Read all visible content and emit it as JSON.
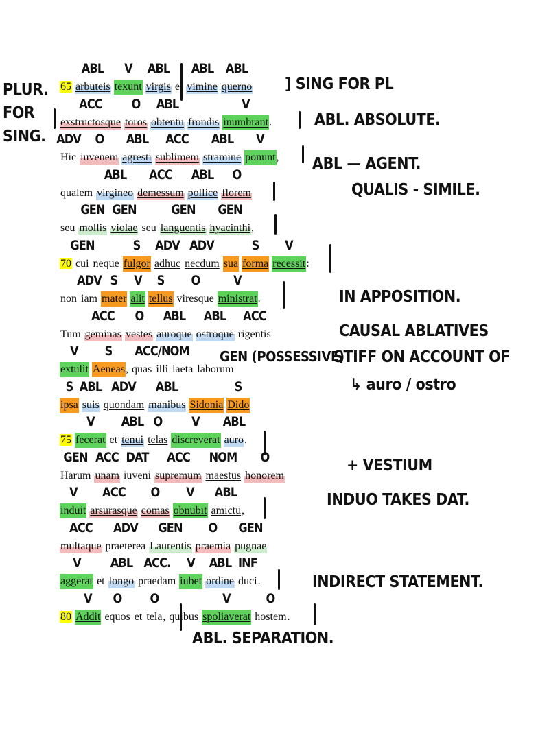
{
  "left_notes": [
    "PLUR.",
    "FOR",
    "SING."
  ],
  "right_notes": {
    "sing_for_pl": "] SING FOR PL",
    "abl_absolute": "ABL. ABSOLUTE.",
    "abl_agent": "ABL — AGENT.",
    "qualis_simile": "QUALIS - SIMILE.",
    "in_apposition": "IN APPOSITION.",
    "causal_ablatives": "CAUSAL  ABLATIVES",
    "stiff_on_account": "STIFF ON ACCOUNT OF",
    "auro_ostro": "↳ auro / ostro",
    "plus_vestium": "+ VESTIUM",
    "induo_dat": "INDUO TAKES DAT.",
    "indirect_statement": "INDIRECT STATEMENT.",
    "abl_separation": "ABL. SEPARATION.",
    "gen_possessive": "GEN (POSSESSIVE)"
  },
  "colors": {
    "verb": "#5ed35c",
    "subject": "#f79a1f",
    "ablative": "#bfd9f3",
    "accusative": "#f3bcbc",
    "genitive": "#cdeccd",
    "line_number": "#ffff00"
  },
  "lines": [
    {
      "num": "65",
      "words": [
        {
          "t": "arbuteis",
          "hl": "blue",
          "u": true,
          "tag": "ABL"
        },
        {
          "t": "texunt",
          "hl": "green",
          "tag": "V"
        },
        {
          "t": "virgis",
          "hl": "blue",
          "u": true,
          "tag": "ABL"
        },
        {
          "t": "et"
        },
        {
          "t": "vimine",
          "hl": "blue",
          "u": true,
          "tag": "ABL"
        },
        {
          "t": "querno",
          "hl": "blue",
          "u": true,
          "tag": "ABL"
        }
      ]
    },
    {
      "words": [
        {
          "t": "exstructosque",
          "hl": "pink",
          "u": true,
          "tag": "ACC"
        },
        {
          "t": "toros",
          "hl": "pink",
          "u": true,
          "tag": "O"
        },
        {
          "t": "obtentu",
          "hl": "blue",
          "u": true,
          "tag": "ABL"
        },
        {
          "t": "frondis",
          "hl": "blue",
          "u": true
        },
        {
          "t": "inumbrant",
          "hl": "green",
          "u": true,
          "tag": "V",
          "punct": "."
        }
      ]
    },
    {
      "words": [
        {
          "t": "Hic",
          "tag": "ADV"
        },
        {
          "t": "iuvenem",
          "hl": "pink",
          "tag": "O"
        },
        {
          "t": "agresti",
          "hl": "blue",
          "u": true,
          "tag": "ABL"
        },
        {
          "t": "sublimem",
          "hl": "pink",
          "u": true,
          "tag": "ACC"
        },
        {
          "t": "stramine",
          "hl": "blue",
          "u": true,
          "tag": "ABL"
        },
        {
          "t": "ponunt",
          "hl": "green",
          "tag": "V",
          "punct": ","
        }
      ]
    },
    {
      "words": [
        {
          "t": "qualem"
        },
        {
          "t": "virgineo",
          "hl": "blue",
          "tag": "ABL"
        },
        {
          "t": "demessum",
          "hl": "pink",
          "u": true,
          "tag": "ACC"
        },
        {
          "t": "pollice",
          "hl": "blue",
          "u": true,
          "tag": "ABL"
        },
        {
          "t": "florem",
          "hl": "pink",
          "u": true,
          "tag": "O"
        }
      ]
    },
    {
      "words": [
        {
          "t": "seu"
        },
        {
          "t": "mollis",
          "hl": "lightgreen",
          "tag": "GEN"
        },
        {
          "t": "violae",
          "hl": "lightgreen",
          "u": true,
          "tag": "GEN"
        },
        {
          "t": "seu"
        },
        {
          "t": "languentis",
          "hl": "lightgreen",
          "u": true,
          "tag": "GEN"
        },
        {
          "t": "hyacinthi",
          "hl": "lightgreen",
          "u": true,
          "tag": "GEN",
          "punct": ","
        }
      ]
    },
    {
      "num": "70",
      "words": [
        {
          "t": "cui",
          "tag": "GEN"
        },
        {
          "t": "neque"
        },
        {
          "t": "fulgor",
          "hl": "orange",
          "u": true,
          "tag": "S"
        },
        {
          "t": "adhuc",
          "u": true,
          "tag": "ADV"
        },
        {
          "t": "necdum",
          "u": true,
          "tag": "ADV"
        },
        {
          "t": "sua",
          "hl": "orange"
        },
        {
          "t": "forma",
          "hl": "orange",
          "u": true,
          "tag": "S"
        },
        {
          "t": "recessit",
          "hl": "green",
          "u": true,
          "tag": "V",
          "punct": ":"
        }
      ]
    },
    {
      "words": [
        {
          "t": "non"
        },
        {
          "t": "iam",
          "tag": "ADV"
        },
        {
          "t": "mater",
          "hl": "orange",
          "tag": "S"
        },
        {
          "t": "alit",
          "hl": "green",
          "u": true,
          "tag": "V"
        },
        {
          "t": "tellus",
          "hl": "orange",
          "u": true,
          "tag": "S"
        },
        {
          "t": "viresque",
          "tag": "O"
        },
        {
          "t": "ministrat",
          "hl": "green",
          "u": true,
          "tag": "V",
          "punct": "."
        }
      ]
    },
    {
      "words": [
        {
          "t": "Tum"
        },
        {
          "t": "geminas",
          "hl": "pink",
          "u": true,
          "tag": "ACC"
        },
        {
          "t": "vestes",
          "hl": "pink",
          "u": true,
          "tag": "O"
        },
        {
          "t": "auroque",
          "hl": "blue",
          "tag": "ABL"
        },
        {
          "t": "ostroque",
          "hl": "blue",
          "tag": "ABL"
        },
        {
          "t": "rigentis",
          "u": true,
          "tag": "ACC"
        }
      ]
    },
    {
      "words": [
        {
          "t": "extulit",
          "hl": "green",
          "tag": "V"
        },
        {
          "t": "Aeneas",
          "hl": "orange",
          "tag": "S",
          "punct": ","
        },
        {
          "t": "quas"
        },
        {
          "t": "illi",
          "tag": "ACC/NOM"
        },
        {
          "t": "laeta"
        },
        {
          "t": "laborum"
        }
      ]
    },
    {
      "words": [
        {
          "t": "ipsa",
          "hl": "orange",
          "tag": "S"
        },
        {
          "t": "suis",
          "hl": "blue",
          "tag": "ABL"
        },
        {
          "t": "quondam",
          "u": true,
          "tag": "ADV"
        },
        {
          "t": "manibus",
          "hl": "blue",
          "tag": "ABL"
        },
        {
          "t": "Sidonia",
          "hl": "orange",
          "u": true
        },
        {
          "t": "Dido",
          "hl": "orange",
          "u": true,
          "tag": "S"
        }
      ]
    },
    {
      "num": "75",
      "words": [
        {
          "t": "fecerat",
          "hl": "green",
          "tag": "V"
        },
        {
          "t": "et"
        },
        {
          "t": "tenui",
          "hl": "blue",
          "u": true,
          "tag": "ABL"
        },
        {
          "t": "telas",
          "u": true,
          "tag": "O"
        },
        {
          "t": "discreverat",
          "hl": "green",
          "tag": "V"
        },
        {
          "t": "auro",
          "hl": "blue",
          "tag": "ABL",
          "punct": "."
        }
      ]
    },
    {
      "words": [
        {
          "t": "Harum",
          "tag": "GEN"
        },
        {
          "t": "unam",
          "hl": "pink",
          "tag": "ACC"
        },
        {
          "t": "iuveni",
          "tag": "DAT"
        },
        {
          "t": "supremum",
          "hl": "pink",
          "tag": "ACC"
        },
        {
          "t": "maestus",
          "u": true,
          "tag": "NOM"
        },
        {
          "t": "honorem",
          "hl": "pink",
          "tag": "O"
        }
      ]
    },
    {
      "words": [
        {
          "t": "induit",
          "hl": "green",
          "tag": "V"
        },
        {
          "t": "arsurasque",
          "hl": "pink",
          "u": true,
          "tag": "ACC"
        },
        {
          "t": "comas",
          "hl": "pink",
          "u": true,
          "tag": "O"
        },
        {
          "t": "obnubit",
          "hl": "green",
          "u": true,
          "tag": "V"
        },
        {
          "t": "amictu",
          "u": true,
          "tag": "ABL",
          "punct": ","
        }
      ]
    },
    {
      "words": [
        {
          "t": "multaque",
          "hl": "pink",
          "tag": "ACC"
        },
        {
          "t": "praeterea",
          "u": true,
          "tag": "ADV"
        },
        {
          "t": "Laurentis",
          "hl": "lightgreen",
          "u": true,
          "tag": "GEN"
        },
        {
          "t": "praemia",
          "hl": "pink",
          "tag": "O"
        },
        {
          "t": "pugnae",
          "hl": "lightgreen",
          "tag": "GEN"
        }
      ]
    },
    {
      "words": [
        {
          "t": "aggerat",
          "hl": "green",
          "u": true,
          "tag": "V"
        },
        {
          "t": "et"
        },
        {
          "t": "longo",
          "hl": "blue",
          "tag": "ABL"
        },
        {
          "t": "praedam",
          "u": true,
          "tag": "ACC."
        },
        {
          "t": "iubet",
          "hl": "green",
          "tag": "V"
        },
        {
          "t": "ordine",
          "hl": "blue",
          "u": true,
          "tag": "ABL"
        },
        {
          "t": "duci",
          "tag": "INF",
          "punct": "."
        }
      ]
    },
    {
      "num": "80",
      "words": [
        {
          "t": "Addit",
          "hl": "green",
          "u": true,
          "tag": "V"
        },
        {
          "t": "equos",
          "tag": "O"
        },
        {
          "t": "et"
        },
        {
          "t": "tela",
          "tag": "O",
          "punct": ","
        },
        {
          "t": "quibus"
        },
        {
          "t": "spoliaverat",
          "hl": "green",
          "u": true,
          "tag": "V"
        },
        {
          "t": "hostem",
          "tag": "O",
          "punct": "."
        }
      ]
    }
  ]
}
